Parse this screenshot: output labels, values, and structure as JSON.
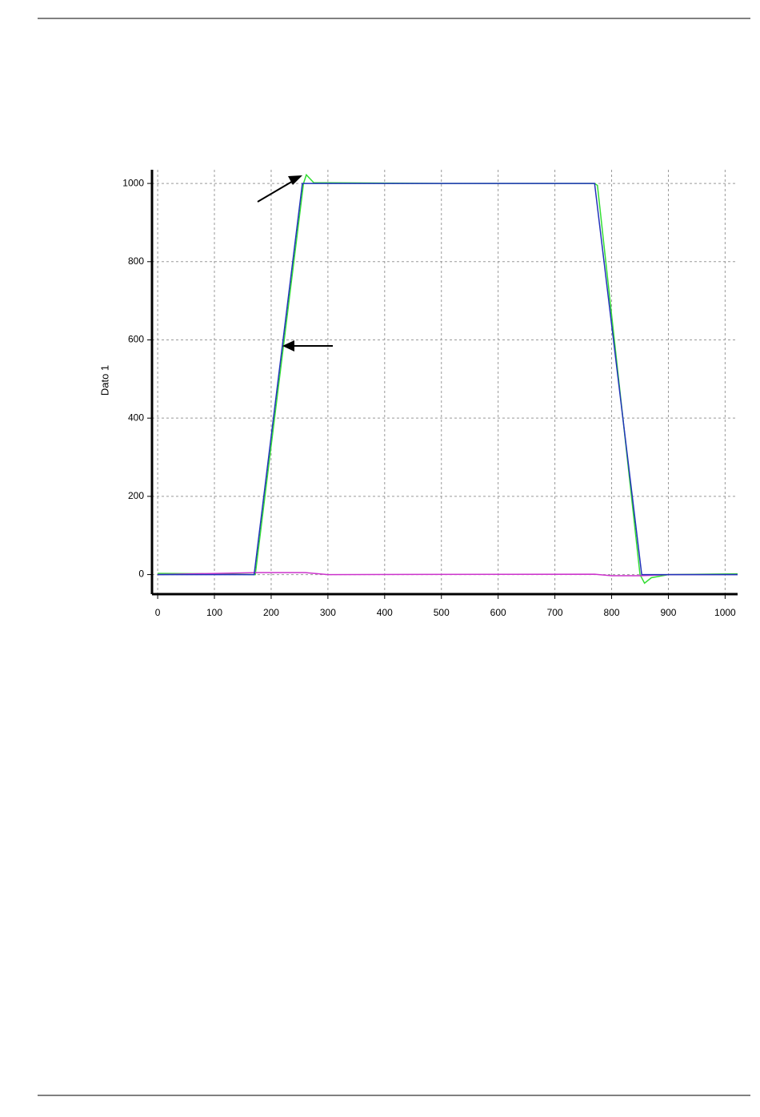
{
  "chart_data": {
    "type": "line",
    "ylabel": "Dato 1",
    "xlim": [
      -10,
      1022
    ],
    "ylim": [
      -50,
      1035
    ],
    "xticks": [
      0,
      100,
      200,
      300,
      400,
      500,
      600,
      700,
      800,
      900,
      1000
    ],
    "yticks": [
      0,
      200,
      400,
      600,
      800,
      1000
    ],
    "grid": true,
    "series": [
      {
        "color": "#33dd33",
        "x": [
          0,
          100,
          172,
          257,
          262,
          275,
          500,
          770,
          775,
          850,
          858,
          870,
          900,
          1022
        ],
        "values": [
          3,
          2,
          0,
          1000,
          1022,
          1002,
          1000,
          1000,
          995,
          0,
          -22,
          -8,
          0,
          2
        ]
      },
      {
        "color": "#cc33cc",
        "x": [
          0,
          175,
          260,
          300,
          770,
          800,
          850,
          900,
          1022
        ],
        "values": [
          0,
          5,
          5,
          0,
          1,
          -3,
          -3,
          0,
          0
        ]
      },
      {
        "color": "#2233bb",
        "x": [
          0,
          170,
          255,
          770,
          853,
          1022
        ],
        "values": [
          0,
          0,
          1000,
          1000,
          0,
          0
        ]
      }
    ]
  }
}
